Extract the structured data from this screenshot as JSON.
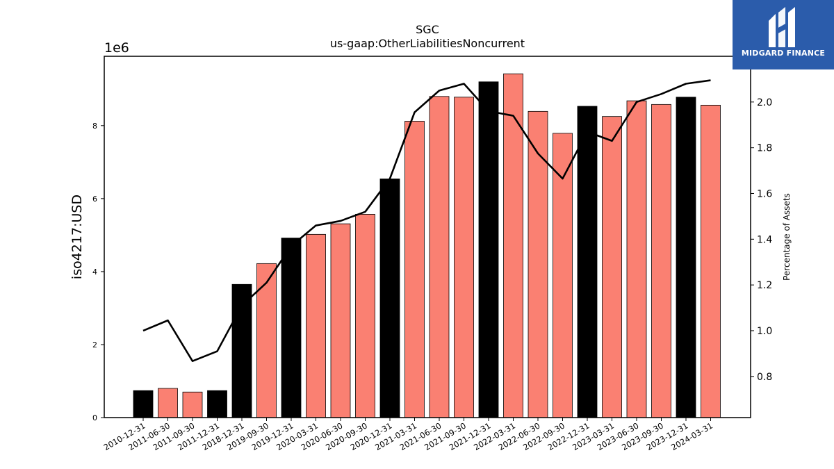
{
  "brand": {
    "name": "MIDGARD FINANCE",
    "icon": "midgard-logo-icon",
    "color": "#2b5cab"
  },
  "chart_data": {
    "type": "bar",
    "title": "SGC",
    "subtitle": "us-gaap:OtherLiabilitiesNoncurrent",
    "ylabel": "iso4217:USD",
    "y_scale_label": "1e6",
    "y2label": "Percentage of Assets",
    "ylim": [
      0,
      9900000
    ],
    "y2lim": [
      0.62,
      2.2
    ],
    "yticks": [
      0,
      2,
      4,
      6,
      8
    ],
    "y2ticks": [
      0.8,
      1.0,
      1.2,
      1.4,
      1.6,
      1.8,
      2.0
    ],
    "grid": false,
    "categories": [
      "2010-12-31",
      "2011-06-30",
      "2011-09-30",
      "2011-12-31",
      "2018-12-31",
      "2019-09-30",
      "2019-12-31",
      "2020-03-31",
      "2020-06-30",
      "2020-09-30",
      "2020-12-31",
      "2021-03-31",
      "2021-06-30",
      "2021-09-30",
      "2021-12-31",
      "2022-03-31",
      "2022-06-30",
      "2022-09-30",
      "2022-12-31",
      "2023-03-31",
      "2023-06-30",
      "2023-09-30",
      "2023-12-31",
      "2024-03-31"
    ],
    "series": [
      {
        "kind": "bar",
        "values": [
          740000,
          800000,
          700000,
          740000,
          3650000,
          4220000,
          4920000,
          5020000,
          5310000,
          5570000,
          6540000,
          8120000,
          8800000,
          8780000,
          9200000,
          9420000,
          8390000,
          7790000,
          8530000,
          8250000,
          8680000,
          8580000,
          8780000,
          8560000
        ],
        "colors": [
          "#000000",
          "#fa8072",
          "#fa8072",
          "#000000",
          "#000000",
          "#fa8072",
          "#000000",
          "#fa8072",
          "#fa8072",
          "#fa8072",
          "#000000",
          "#fa8072",
          "#fa8072",
          "#fa8072",
          "#000000",
          "#fa8072",
          "#fa8072",
          "#fa8072",
          "#000000",
          "#fa8072",
          "#fa8072",
          "#fa8072",
          "#000000",
          "#fa8072"
        ]
      },
      {
        "kind": "line",
        "axis": "right",
        "color": "#000000",
        "values": [
          1.0,
          1.045,
          0.867,
          0.91,
          1.11,
          1.21,
          1.37,
          1.46,
          1.48,
          1.52,
          1.665,
          1.955,
          2.05,
          2.08,
          1.96,
          1.94,
          1.775,
          1.665,
          1.87,
          1.83,
          2.0,
          2.035,
          2.08,
          2.095
        ]
      }
    ]
  }
}
